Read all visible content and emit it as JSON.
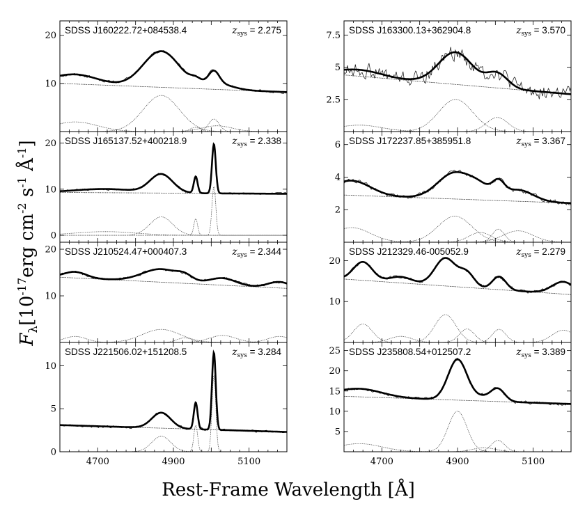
{
  "figure": {
    "ylabel_prefix": "F",
    "ylabel_sub": "λ",
    "ylabel_open": "[10",
    "ylabel_exp1": "-17",
    "ylabel_erg": "erg cm",
    "ylabel_exp2": "-2",
    "ylabel_s": " s",
    "ylabel_exp3": "-1",
    "ylabel_ang": " Å",
    "ylabel_exp4": "-1",
    "ylabel_close": "]",
    "xlabel": "Rest-Frame Wavelength [Å]",
    "z_prefix": "z",
    "z_sub": "sys",
    "z_eq": " = "
  },
  "chart_data": [
    {
      "type": "line",
      "name": "SDSS J160222.72+084538.4",
      "zsys": "2.275",
      "xlim": [
        4600,
        5200
      ],
      "ylim": [
        0,
        23
      ],
      "xticks": [
        4700,
        4900,
        5100
      ],
      "show_xticklabels": false,
      "yticks": [
        10,
        20
      ],
      "ytick_labels": [
        "10",
        "20"
      ],
      "cont": [
        10,
        8.2
      ],
      "comps": [
        [
          4868,
          7.5,
          48
        ],
        [
          5007,
          2.6,
          14
        ],
        [
          4959,
          0.9,
          14
        ],
        [
          4640,
          2.0,
          60
        ],
        [
          5015,
          1.2,
          40
        ]
      ],
      "noise": 0.45
    },
    {
      "type": "line",
      "name": "SDSS J163300.13+362904.8",
      "zsys": "3.570",
      "xlim": [
        4600,
        5200
      ],
      "ylim": [
        0,
        8.6
      ],
      "xticks": [
        4700,
        4900,
        5100
      ],
      "show_xticklabels": false,
      "yticks": [
        2.5,
        5,
        7.5
      ],
      "ytick_labels": [
        "2.5",
        "5",
        "7.5"
      ],
      "cont": [
        4.4,
        2.9
      ],
      "comps": [
        [
          4895,
          2.5,
          45
        ],
        [
          5005,
          1.1,
          28
        ],
        [
          4640,
          0.5,
          60
        ]
      ],
      "noise": 0.9
    },
    {
      "type": "line",
      "name": "SDSS J165137.52+400218.9",
      "zsys": "2.338",
      "xlim": [
        4600,
        5200
      ],
      "ylim": [
        -1.5,
        22.5
      ],
      "xticks": [
        4700,
        4900,
        5100
      ],
      "show_xticklabels": false,
      "yticks": [
        0,
        10,
        20
      ],
      "ytick_labels": [
        "0",
        "10",
        "20"
      ],
      "cont": [
        9.3,
        9.0
      ],
      "comps": [
        [
          4868,
          4.0,
          30
        ],
        [
          4959,
          3.6,
          5
        ],
        [
          5007,
          10.7,
          5
        ],
        [
          4720,
          0.8,
          80
        ]
      ],
      "noise": 0.35
    },
    {
      "type": "line",
      "name": "SDSS J172237.85+385951.8",
      "zsys": "3.367",
      "xlim": [
        4600,
        5200
      ],
      "ylim": [
        0,
        6.8
      ],
      "xticks": [
        4700,
        4900,
        5100
      ],
      "show_xticklabels": false,
      "yticks": [
        2,
        4,
        6
      ],
      "ytick_labels": [
        "2",
        "4",
        "6"
      ],
      "cont": [
        2.9,
        2.4
      ],
      "comps": [
        [
          4893,
          1.6,
          45
        ],
        [
          4960,
          0.6,
          30
        ],
        [
          5008,
          0.8,
          16
        ],
        [
          4620,
          0.9,
          50
        ],
        [
          5060,
          0.7,
          40
        ]
      ],
      "noise": 0.2
    },
    {
      "type": "line",
      "name": "SDSS J210524.47+000407.3",
      "zsys": "2.344",
      "xlim": [
        4600,
        5200
      ],
      "ylim": [
        0,
        21.5
      ],
      "xticks": [
        4700,
        4900,
        5100
      ],
      "show_xticklabels": false,
      "yticks": [
        10,
        20
      ],
      "ytick_labels": [
        "10",
        "20"
      ],
      "cont": [
        14.0,
        11.6
      ],
      "comps": [
        [
          4868,
          2.8,
          50
        ],
        [
          5030,
          1.5,
          35
        ],
        [
          4930,
          1.0,
          20
        ],
        [
          4640,
          1.3,
          30
        ],
        [
          5180,
          1.3,
          30
        ]
      ],
      "noise": 0.45
    },
    {
      "type": "line",
      "name": "SDSS J212329.46-005052.9",
      "zsys": "2.279",
      "xlim": [
        4600,
        5200
      ],
      "ylim": [
        0,
        24.5
      ],
      "xticks": [
        4700,
        4900,
        5100
      ],
      "show_xticklabels": false,
      "yticks": [
        10,
        20
      ],
      "ytick_labels": [
        "10",
        "20"
      ],
      "cont": [
        15.5,
        11.7
      ],
      "comps": [
        [
          4868,
          6.8,
          28
        ],
        [
          4925,
          3.3,
          20
        ],
        [
          5010,
          3.2,
          18
        ],
        [
          4650,
          4.5,
          25
        ],
        [
          5180,
          3.0,
          30
        ],
        [
          4750,
          1.5,
          30
        ]
      ],
      "noise": 0.6
    },
    {
      "type": "line",
      "name": "SDSS J221506.02+151208.5",
      "zsys": "3.284",
      "xlim": [
        4600,
        5200
      ],
      "ylim": [
        0,
        12.7
      ],
      "xticks": [
        4700,
        4900,
        5100
      ],
      "xtick_labels": [
        "4700",
        "4900",
        "5100"
      ],
      "show_xticklabels": true,
      "yticks": [
        0,
        5,
        10
      ],
      "ytick_labels": [
        "0",
        "5",
        "10"
      ],
      "cont": [
        3.1,
        2.3
      ],
      "comps": [
        [
          4868,
          1.8,
          25
        ],
        [
          4959,
          3.1,
          5
        ],
        [
          5007,
          9.0,
          5
        ]
      ],
      "noise": 0.22
    },
    {
      "type": "line",
      "name": "SDSS J235808.54+012507.2",
      "zsys": "3.389",
      "xlim": [
        4600,
        5200
      ],
      "ylim": [
        0,
        27
      ],
      "xticks": [
        4700,
        4900,
        5100
      ],
      "xtick_labels": [
        "4700",
        "4900",
        "5100"
      ],
      "show_xticklabels": true,
      "yticks": [
        5,
        10,
        15,
        20,
        25
      ],
      "ytick_labels": [
        "5",
        "10",
        "15",
        "20",
        "25"
      ],
      "cont": [
        13.7,
        11.8
      ],
      "comps": [
        [
          4900,
          10.0,
          25
        ],
        [
          5007,
          2.8,
          18
        ],
        [
          4640,
          2.0,
          60
        ],
        [
          4970,
          1.0,
          30
        ]
      ],
      "noise": 0.6
    }
  ]
}
